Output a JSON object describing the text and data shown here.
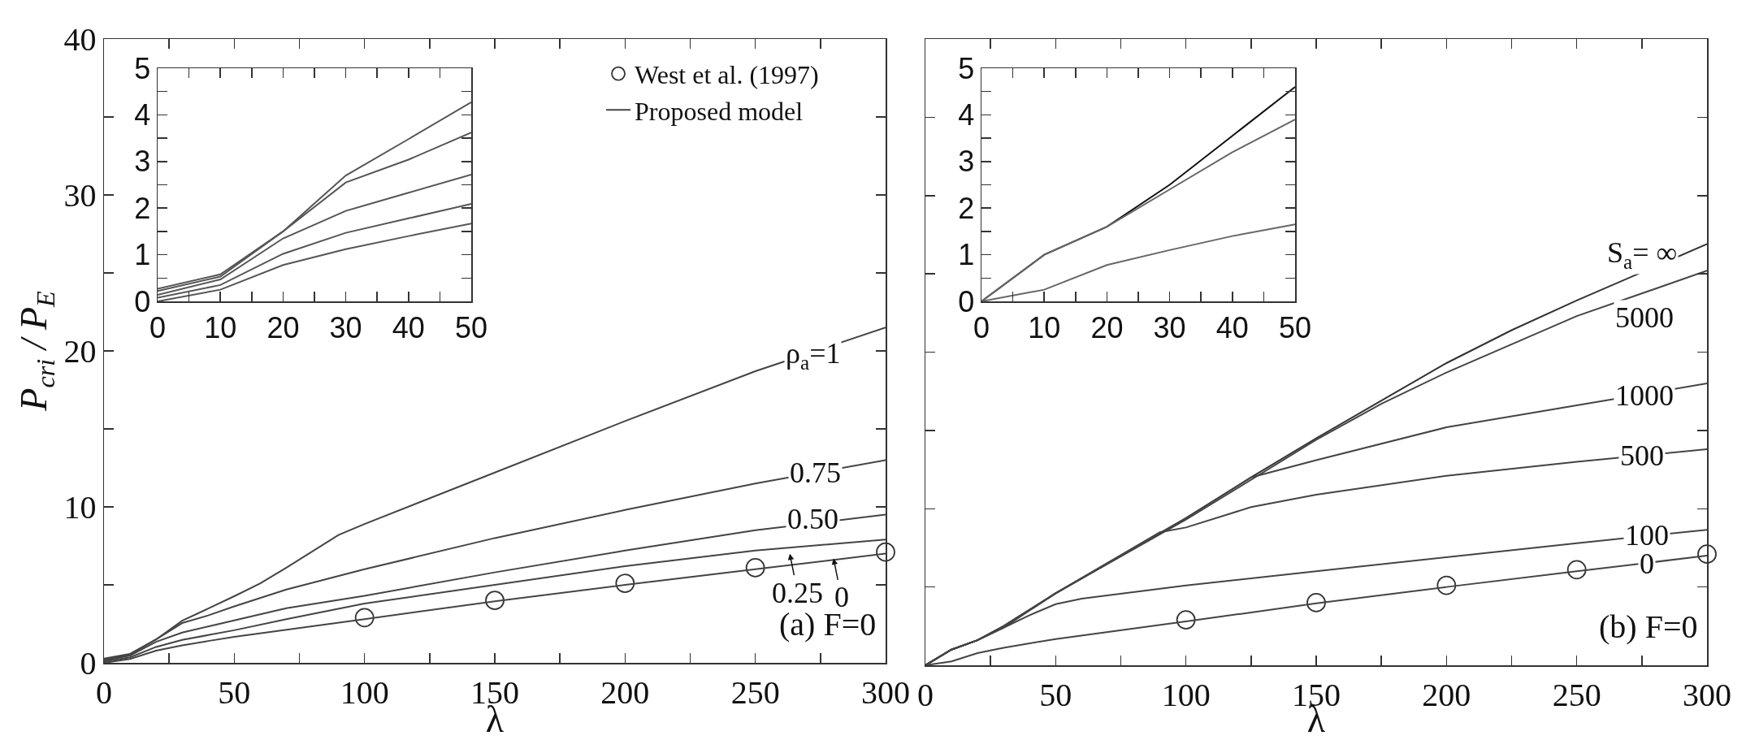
{
  "chart_data": [
    {
      "type": "line",
      "xlabel": "λ",
      "ylabel": "P$_{cri}$ / P$_{E}$",
      "xlim": [
        0,
        300
      ],
      "xticks": [
        0,
        {
          "value": 25,
          "label": null
        },
        50,
        {
          "value": 75,
          "label": null
        },
        100,
        {
          "value": 125,
          "label": null
        },
        150,
        {
          "value": 175,
          "label": null
        },
        200,
        {
          "value": 225,
          "label": null
        },
        250,
        {
          "value": 275,
          "label": null
        },
        300
      ],
      "ylim": [
        0,
        40
      ],
      "yticks": [
        0,
        {
          "value": 5,
          "label": null
        },
        10,
        {
          "value": 15,
          "label": null
        },
        20,
        {
          "value": 25,
          "label": null
        },
        30,
        {
          "value": 35,
          "label": null
        },
        40
      ],
      "grid": false,
      "legend": "top right",
      "series": [
        {
          "name": "West et al. (1997)",
          "type": "scatter",
          "marker": "circle",
          "color": "#333333",
          "x": [
            100,
            150,
            200,
            250,
            300
          ],
          "values": [
            2.9,
            4.0,
            5.1,
            6.1,
            7.1
          ]
        },
        {
          "name": "Proposed model",
          "color": "#444444",
          "x": [
            0,
            10,
            20,
            30,
            40,
            50,
            60,
            70,
            90,
            100,
            150,
            200,
            250,
            300
          ],
          "values": [
            0.27,
            0.58,
            1.5,
            2.7,
            3.48,
            4.27,
            5.1,
            6.1,
            8.2,
            8.9,
            12.2,
            15.5,
            18.7,
            21.5
          ]
        },
        {
          "color": "#444444",
          "x": [
            0,
            10,
            20,
            30,
            40,
            50,
            70,
            100,
            150,
            200,
            250,
            300
          ],
          "values": [
            0.22,
            0.53,
            1.5,
            2.55,
            3.04,
            3.62,
            4.7,
            6.0,
            8.0,
            9.8,
            11.5,
            13.0
          ]
        },
        {
          "color": "#444444",
          "x": [
            0,
            10,
            20,
            30,
            40,
            50,
            70,
            100,
            150,
            200,
            250,
            300
          ],
          "values": [
            0.14,
            0.47,
            1.35,
            1.94,
            2.33,
            2.72,
            3.5,
            4.3,
            5.8,
            7.2,
            8.5,
            9.5
          ]
        },
        {
          "color": "#444444",
          "x": [
            0,
            10,
            20,
            30,
            40,
            50,
            70,
            100,
            150,
            200,
            250,
            300
          ],
          "values": [
            0.08,
            0.35,
            1.02,
            1.47,
            1.78,
            2.09,
            2.8,
            3.8,
            5.0,
            6.2,
            7.2,
            7.9
          ]
        },
        {
          "color": "#444444",
          "x": [
            0,
            10,
            20,
            30,
            40,
            50,
            100,
            150,
            200,
            250,
            300
          ],
          "values": [
            0,
            0.25,
            0.78,
            1.12,
            1.4,
            1.67,
            2.8,
            3.95,
            5.0,
            6.0,
            7.0
          ]
        }
      ],
      "annotations": [
        "(a) F=0",
        {
          "text": "ρ$_{a}$=1",
          "x": 272,
          "y": 19.7
        },
        {
          "text": "0.75",
          "x": 273,
          "y": 12.2
        },
        {
          "text": "0.50",
          "x": 272,
          "y": 9.2
        },
        "0.25",
        "0"
      ]
    },
    {
      "type": "line",
      "xlim": [
        0,
        50
      ],
      "xticks": [
        0,
        {
          "value": 5,
          "label": null
        },
        10,
        {
          "value": 15,
          "label": null
        },
        20,
        {
          "value": 25,
          "label": null
        },
        30,
        {
          "value": 35,
          "label": null
        },
        40,
        {
          "value": 45,
          "label": null
        },
        50
      ],
      "ylim": [
        0,
        5
      ],
      "yticks": [
        0,
        {
          "value": 0.5,
          "label": null
        },
        1,
        {
          "value": 1.5,
          "label": null
        },
        2,
        {
          "value": 2.5,
          "label": null
        },
        3,
        {
          "value": 3.5,
          "label": null
        },
        4,
        {
          "value": 4.5,
          "label": null
        },
        5
      ],
      "grid": false,
      "x": [
        0,
        10,
        20,
        30,
        40,
        50
      ],
      "series": [
        {
          "color": "#555555",
          "values": [
            0.27,
            0.58,
            1.5,
            2.7,
            3.48,
            4.27
          ]
        },
        {
          "color": "#555555",
          "values": [
            0.22,
            0.53,
            1.5,
            2.55,
            3.04,
            3.62
          ]
        },
        {
          "color": "#555555",
          "values": [
            0.14,
            0.47,
            1.35,
            1.94,
            2.33,
            2.72
          ]
        },
        {
          "color": "#555555",
          "values": [
            0.08,
            0.35,
            1.02,
            1.47,
            1.78,
            2.09
          ]
        },
        {
          "color": "#555555",
          "values": [
            0,
            0.25,
            0.78,
            1.12,
            1.4,
            1.67
          ]
        }
      ]
    },
    {
      "type": "line",
      "xlabel": "λ",
      "tick_labels": "x",
      "xlim": [
        0,
        300
      ],
      "xticks": [
        0,
        {
          "value": 25,
          "label": null
        },
        50,
        {
          "value": 75,
          "label": null
        },
        100,
        {
          "value": 125,
          "label": null
        },
        150,
        {
          "value": 175,
          "label": null
        },
        200,
        {
          "value": 225,
          "label": null
        },
        250,
        {
          "value": 275,
          "label": null
        },
        300
      ],
      "ylim": [
        0,
        40
      ],
      "yticks": [
        0,
        {
          "value": 5,
          "label": null
        },
        10,
        {
          "value": 15,
          "label": null
        },
        20,
        {
          "value": 25,
          "label": null
        },
        30,
        {
          "value": 35,
          "label": null
        },
        40
      ],
      "grid": false,
      "series": [
        {
          "type": "scatter",
          "marker": "circle",
          "color": "#333333",
          "x": [
            100,
            150,
            200,
            250,
            300
          ],
          "values": [
            2.9,
            4.0,
            5.1,
            6.1,
            7.1
          ]
        },
        {
          "color": "#333333",
          "x": [
            0,
            10,
            20,
            30,
            40,
            50,
            100,
            125,
            150,
            200,
            225,
            250,
            300
          ],
          "values": [
            0,
            1.0,
            1.6,
            2.5,
            3.55,
            4.6,
            9.4,
            12.0,
            14.5,
            19.3,
            21.4,
            23.3,
            26.9
          ]
        },
        {
          "color": "#444444",
          "x": [
            0,
            10,
            20,
            30,
            50,
            100,
            150,
            175,
            200,
            250,
            300
          ],
          "values": [
            0,
            1.0,
            1.6,
            2.4,
            4.6,
            9.3,
            14.4,
            16.7,
            18.7,
            22.3,
            25.2
          ]
        },
        {
          "color": "#444444",
          "x": [
            0,
            10,
            20,
            30,
            50,
            100,
            125,
            150,
            200,
            250,
            300
          ],
          "values": [
            0,
            1.0,
            1.6,
            2.5,
            4.6,
            9.4,
            12.0,
            13.1,
            15.2,
            16.6,
            18.0
          ]
        },
        {
          "color": "#444444",
          "x": [
            0,
            10,
            20,
            30,
            50,
            90,
            100,
            125,
            150,
            200,
            250,
            300
          ],
          "values": [
            0,
            1.0,
            1.6,
            2.5,
            4.6,
            8.5,
            8.8,
            10.1,
            10.9,
            12.1,
            13.0,
            13.8
          ]
        },
        {
          "color": "#444444",
          "x": [
            0,
            10,
            20,
            30,
            40,
            50,
            60,
            100,
            150,
            200,
            250,
            300
          ],
          "values": [
            0,
            1.0,
            1.6,
            2.4,
            3.2,
            3.9,
            4.25,
            5.1,
            6.0,
            6.9,
            7.8,
            8.65
          ]
        },
        {
          "color": "#444444",
          "x": [
            0,
            10,
            20,
            30,
            40,
            50,
            100,
            150,
            200,
            250,
            300
          ],
          "values": [
            0,
            0.25,
            0.78,
            1.12,
            1.4,
            1.67,
            2.8,
            3.95,
            5.0,
            6.0,
            7.0
          ]
        }
      ],
      "annotations": [
        "(b) F=0",
        "S$_{a}$= ∞",
        "5000",
        {
          "text": "1000",
          "x": 276,
          "y": 17.2
        },
        {
          "text": "500",
          "x": 275,
          "y": 13.4
        },
        {
          "text": "100",
          "x": 277,
          "y": 8.3
        },
        {
          "text": "0",
          "x": 277,
          "y": 6.5
        }
      ]
    },
    {
      "type": "line",
      "xlim": [
        0,
        50
      ],
      "xticks": [
        0,
        {
          "value": 5,
          "label": null
        },
        10,
        {
          "value": 15,
          "label": null
        },
        20,
        {
          "value": 25,
          "label": null
        },
        30,
        {
          "value": 35,
          "label": null
        },
        40,
        {
          "value": 45,
          "label": null
        },
        50
      ],
      "ylim": [
        0,
        5
      ],
      "yticks": [
        0,
        {
          "value": 0.5,
          "label": null
        },
        1,
        {
          "value": 1.5,
          "label": null
        },
        2,
        {
          "value": 2.5,
          "label": null
        },
        3,
        {
          "value": 3.5,
          "label": null
        },
        4,
        {
          "value": 4.5,
          "label": null
        },
        5
      ],
      "grid": false,
      "x": [
        0,
        10,
        20,
        30,
        40,
        50
      ],
      "series": [
        {
          "color": "#111111",
          "values": [
            0,
            1.0,
            1.6,
            2.5,
            3.55,
            4.6
          ]
        },
        {
          "color": "#666666",
          "values": [
            0,
            1.0,
            1.6,
            2.4,
            3.2,
            3.9
          ]
        },
        {
          "color": "#666666",
          "values": [
            0,
            0.25,
            0.78,
            1.1,
            1.4,
            1.65
          ]
        }
      ]
    }
  ]
}
